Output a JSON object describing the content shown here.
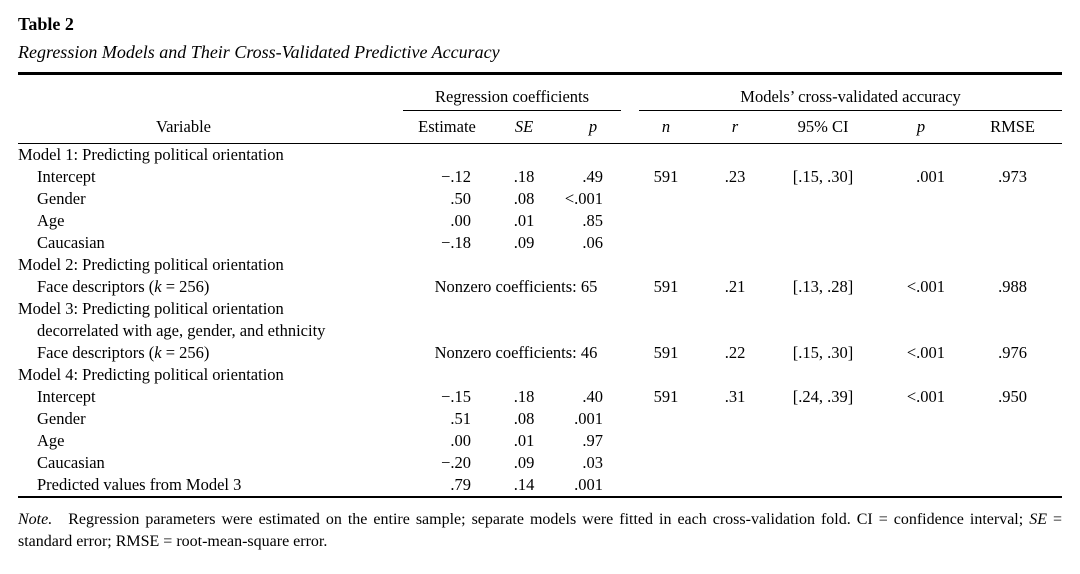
{
  "page": {
    "background_color": "#ffffff",
    "text_color": "#000000"
  },
  "table": {
    "number": "Table 2",
    "title": "Regression Models and Their Cross-Validated Predictive Accuracy",
    "groups": [
      {
        "label": "Regression coefficients",
        "span": 3
      },
      {
        "label": "Models’ cross-validated accuracy",
        "span": 5
      }
    ],
    "columns": [
      {
        "label": "Variable",
        "italic": false
      },
      {
        "label": "Estimate",
        "italic": false
      },
      {
        "label": "SE",
        "italic": true
      },
      {
        "label": "p",
        "italic": true
      },
      {
        "label": "n",
        "italic": true
      },
      {
        "label": "r",
        "italic": true
      },
      {
        "label": "95% CI",
        "italic": false
      },
      {
        "label": "p",
        "italic": true
      },
      {
        "label": "RMSE",
        "italic": false
      }
    ],
    "rows": [
      {
        "type": "section",
        "label": "Model 1: Predicting political orientation"
      },
      {
        "type": "data",
        "label": "Intercept",
        "estimate": "−.12",
        "se": ".18",
        "p": ".49",
        "n": "591",
        "r": ".23",
        "ci": "[.15, .30]",
        "p2": ".001",
        "rmse": ".973"
      },
      {
        "type": "data",
        "label": "Gender",
        "estimate": ".50",
        "se": ".08",
        "p": "<.001",
        "n": "",
        "r": "",
        "ci": "",
        "p2": "",
        "rmse": ""
      },
      {
        "type": "data",
        "label": "Age",
        "estimate": ".00",
        "se": ".01",
        "p": ".85",
        "n": "",
        "r": "",
        "ci": "",
        "p2": "",
        "rmse": ""
      },
      {
        "type": "data",
        "label": "Caucasian",
        "estimate": "−.18",
        "se": ".09",
        "p": ".06",
        "n": "",
        "r": "",
        "ci": "",
        "p2": "",
        "rmse": ""
      },
      {
        "type": "section",
        "label": "Model 2: Predicting political orientation"
      },
      {
        "type": "span",
        "label_parts": [
          {
            "text": "Face descriptors (",
            "italic": false
          },
          {
            "text": "k",
            "italic": true
          },
          {
            "text": " = 256)",
            "italic": false
          }
        ],
        "span_text": "Nonzero coefficients: 65",
        "n": "591",
        "r": ".21",
        "ci": "[.13, .28]",
        "p2": "<.001",
        "rmse": ".988"
      },
      {
        "type": "section",
        "label": "Model 3: Predicting political orientation"
      },
      {
        "type": "continuation",
        "label": "decorrelated with age, gender, and ethnicity"
      },
      {
        "type": "span",
        "label_parts": [
          {
            "text": "Face descriptors (",
            "italic": false
          },
          {
            "text": "k",
            "italic": true
          },
          {
            "text": " = 256)",
            "italic": false
          }
        ],
        "span_text": "Nonzero coefficients: 46",
        "n": "591",
        "r": ".22",
        "ci": "[.15, .30]",
        "p2": "<.001",
        "rmse": ".976"
      },
      {
        "type": "section",
        "label": "Model 4: Predicting political orientation"
      },
      {
        "type": "data",
        "label": "Intercept",
        "estimate": "−.15",
        "se": ".18",
        "p": ".40",
        "n": "591",
        "r": ".31",
        "ci": "[.24, .39]",
        "p2": "<.001",
        "rmse": ".950"
      },
      {
        "type": "data",
        "label": "Gender",
        "estimate": ".51",
        "se": ".08",
        "p": ".001",
        "n": "",
        "r": "",
        "ci": "",
        "p2": "",
        "rmse": ""
      },
      {
        "type": "data",
        "label": "Age",
        "estimate": ".00",
        "se": ".01",
        "p": ".97",
        "n": "",
        "r": "",
        "ci": "",
        "p2": "",
        "rmse": ""
      },
      {
        "type": "data",
        "label": "Caucasian",
        "estimate": "−.20",
        "se": ".09",
        "p": ".03",
        "n": "",
        "r": "",
        "ci": "",
        "p2": "",
        "rmse": ""
      },
      {
        "type": "data",
        "label": "Predicted values from Model 3",
        "estimate": ".79",
        "se": ".14",
        "p": ".001",
        "n": "",
        "r": "",
        "ci": "",
        "p2": "",
        "rmse": ""
      }
    ]
  },
  "note": {
    "parts": [
      {
        "text": "Note.",
        "italic": true
      },
      {
        "text": "  Regression parameters were estimated on the entire sample; separate models were fitted in each cross-validation fold. CI = confidence interval; ",
        "italic": false
      },
      {
        "text": "SE",
        "italic": true
      },
      {
        "text": " = standard error; RMSE = root-mean-square error.",
        "italic": false
      }
    ]
  }
}
